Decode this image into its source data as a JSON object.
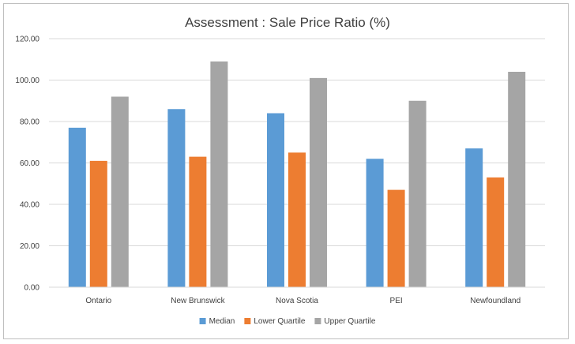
{
  "chart_data": {
    "type": "bar",
    "title": "Assessment : Sale Price Ratio (%)",
    "xlabel": "",
    "ylabel": "",
    "categories": [
      "Ontario",
      "New Brunswick",
      "Nova Scotia",
      "PEI",
      "Newfoundland"
    ],
    "series": [
      {
        "name": "Median",
        "color": "#5B9BD5",
        "values": [
          77,
          86,
          84,
          62,
          67
        ]
      },
      {
        "name": "Lower Quartile",
        "color": "#ED7D31",
        "values": [
          61,
          63,
          65,
          47,
          53
        ]
      },
      {
        "name": "Upper Quartile",
        "color": "#A5A5A5",
        "values": [
          92,
          109,
          101,
          90,
          104
        ]
      }
    ],
    "ylim": [
      0,
      120
    ],
    "yticks": [
      "0.00",
      "20.00",
      "40.00",
      "60.00",
      "80.00",
      "100.00",
      "120.00"
    ],
    "grid": true,
    "legend_position": "bottom"
  }
}
